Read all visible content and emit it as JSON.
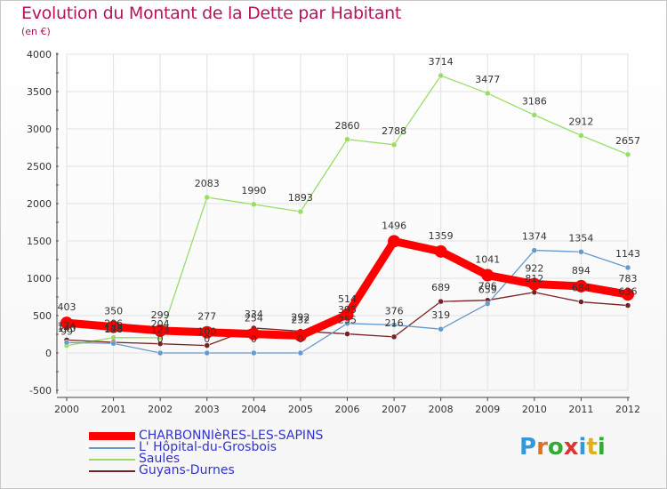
{
  "title": "Evolution du Montant de la Dette par Habitant",
  "unit": "(en €)",
  "logo": {
    "text": "Proxiti"
  },
  "chart_data": {
    "type": "line",
    "title": "Evolution du Montant de la Dette par Habitant",
    "ylabel": "(en €)",
    "x": [
      "2000",
      "2001",
      "2002",
      "2003",
      "2004",
      "2005",
      "2006",
      "2007",
      "2008",
      "2009",
      "2010",
      "2011",
      "2012"
    ],
    "ylim": [
      -500,
      4000
    ],
    "yticks": [
      "-500",
      "0",
      "500",
      "1000",
      "1500",
      "2000",
      "2500",
      "3000",
      "3500",
      "4000"
    ],
    "grid": true,
    "legend_position": "bottom-left",
    "series": [
      {
        "name": "CHARBONNIèRES-LES-SAPINS",
        "color": "#ff0000",
        "values": [
          403,
          350,
          299,
          277,
          254,
          232,
          514,
          1496,
          1359,
          1041,
          922,
          894,
          783
        ],
        "labels": [
          "403",
          "350",
          "299",
          "277",
          "254",
          "232",
          "514",
          "1496",
          "1359",
          "1041",
          "922",
          "894",
          "783"
        ]
      },
      {
        "name": "L' Hôpital-du-Grosbois",
        "color": "#6699cc",
        "values": [
          140,
          128,
          0,
          0,
          0,
          0,
          395,
          376,
          319,
          659,
          1374,
          1354,
          1143
        ],
        "labels": [
          "140",
          "128",
          "0",
          "0",
          "0",
          "0",
          "395",
          "376",
          "319",
          "659",
          "1374",
          "1354",
          "1143"
        ]
      },
      {
        "name": "Saules",
        "color": "#99dd66",
        "values": [
          99,
          206,
          204,
          2083,
          1990,
          1893,
          2860,
          2788,
          3714,
          3477,
          3186,
          2912,
          2657
        ],
        "labels": [
          "99",
          "206",
          "204",
          "2083",
          "1990",
          "1893",
          "2860",
          "2788",
          "3714",
          "3477",
          "3186",
          "2912",
          "2657"
        ]
      },
      {
        "name": "Guyans-Durnes",
        "color": "#772222",
        "values": [
          174,
          143,
          123,
          100,
          334,
          292,
          255,
          216,
          689,
          706,
          812,
          684,
          636
        ],
        "labels": [
          "174",
          "143",
          "123",
          "100",
          "334",
          "292",
          "255",
          "216",
          "689",
          "706",
          "812",
          "684",
          "636"
        ]
      }
    ]
  }
}
